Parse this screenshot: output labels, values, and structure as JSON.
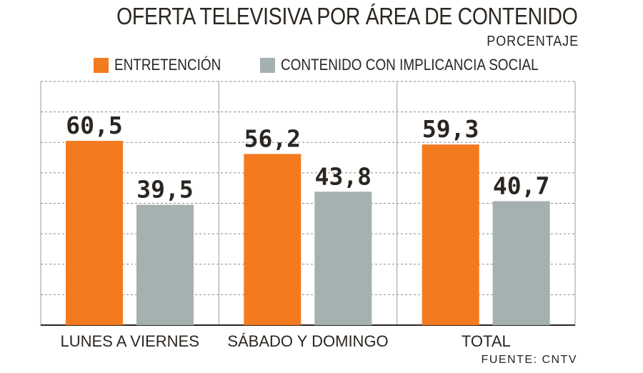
{
  "title": "OFERTA TELEVISIVA POR ÁREA DE CONTENIDO",
  "subtitle": "PORCENTAJE",
  "source": "FUENTE: CNTV",
  "colors": {
    "entretencion": "#f47a20",
    "contenido_social": "#a5b0b0",
    "text": "#2b2621",
    "grid": "#8a8a8a",
    "axis": "#2b2621"
  },
  "chart_data": {
    "type": "bar",
    "categories": [
      "LUNES A VIERNES",
      "SÁBADO Y DOMINGO",
      "TOTAL"
    ],
    "series": [
      {
        "name": "ENTRETENCIÓN",
        "values": [
          60.5,
          56.2,
          59.3
        ],
        "labels": [
          "60,5",
          "56,2",
          "59,3"
        ]
      },
      {
        "name": "CONTENIDO CON IMPLICANCIA SOCIAL",
        "values": [
          39.5,
          43.8,
          40.7
        ],
        "labels": [
          "39,5",
          "43,8",
          "40,7"
        ]
      }
    ],
    "ylim": [
      0,
      80
    ],
    "grid": true,
    "legend_position": "top-right"
  }
}
